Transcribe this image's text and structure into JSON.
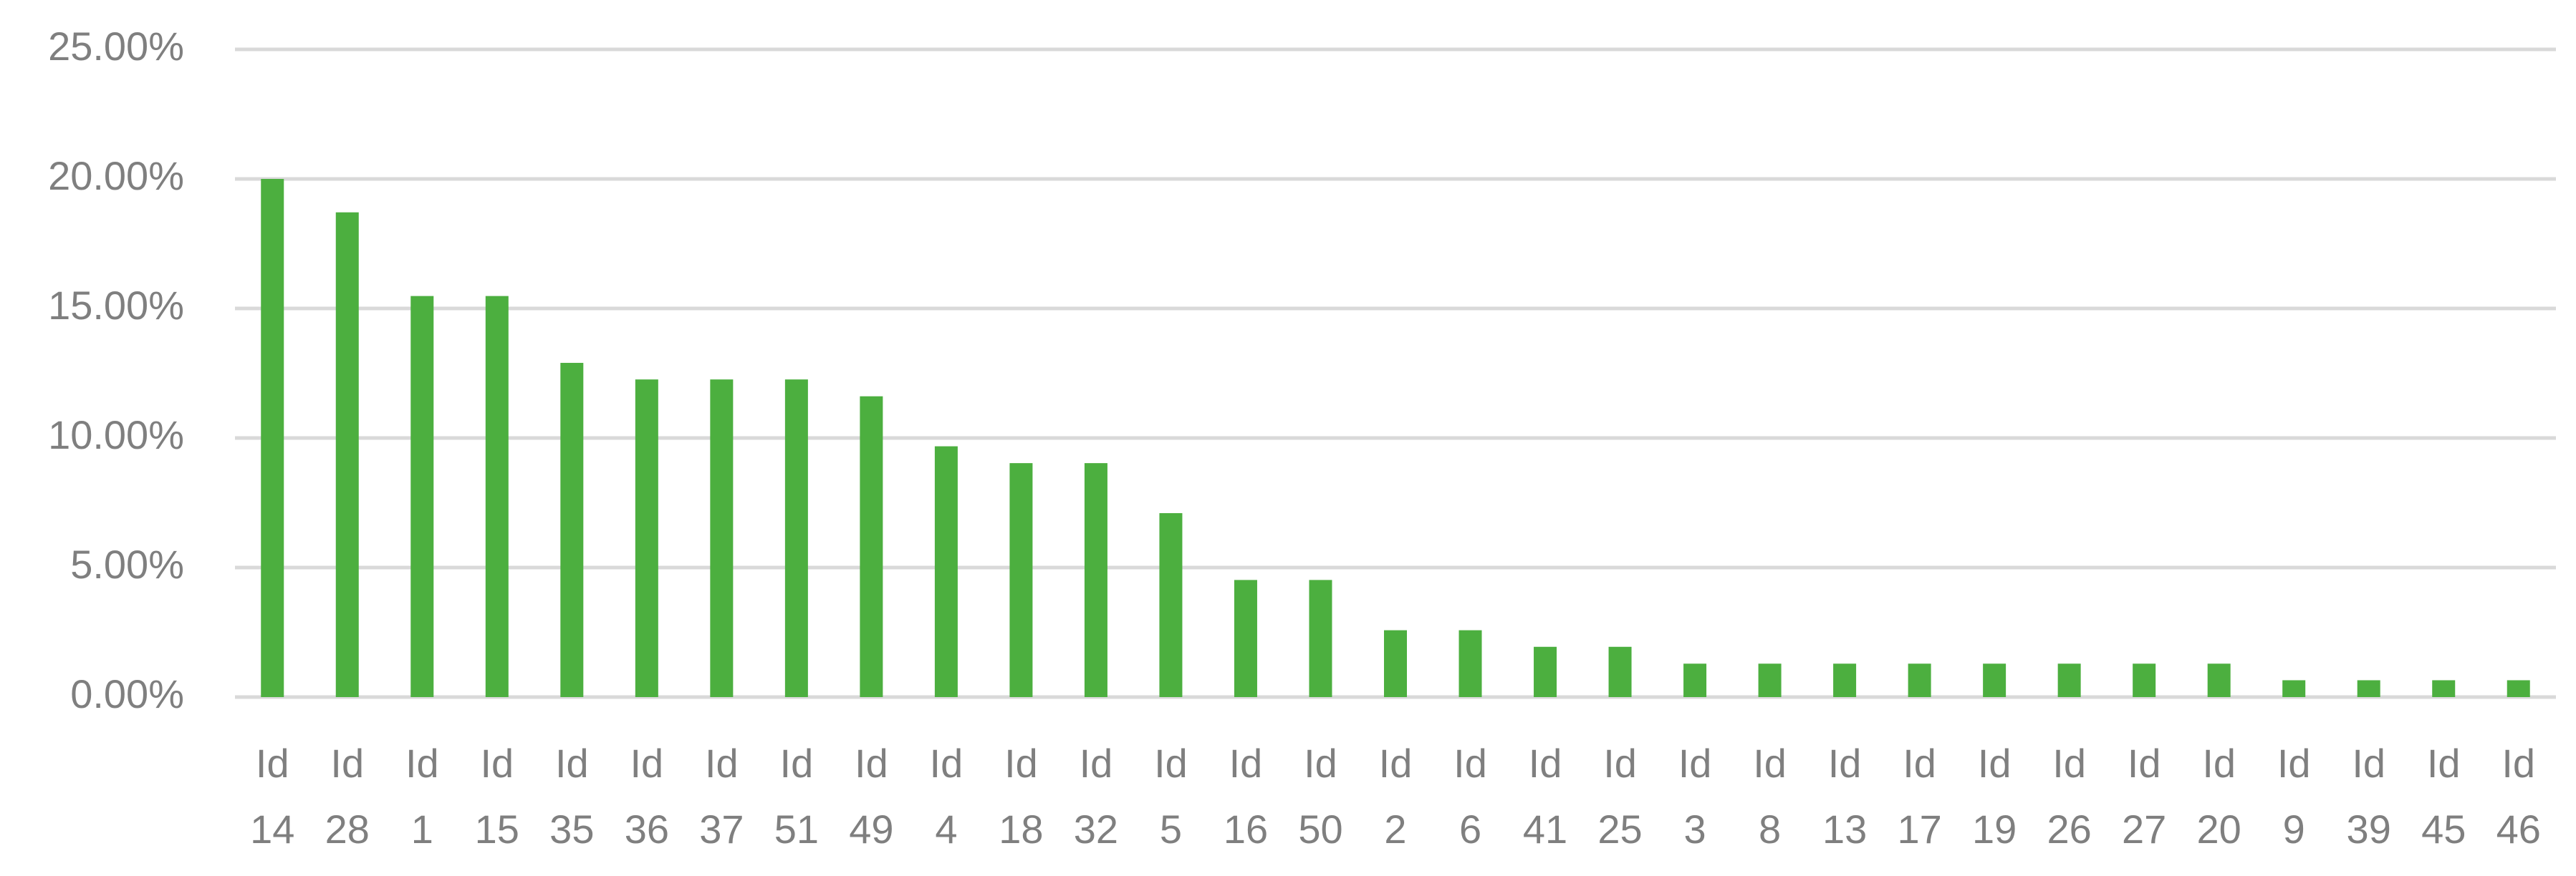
{
  "chart_data": {
    "type": "bar",
    "categories": [
      "Id 14",
      "Id 28",
      "Id 1",
      "Id 15",
      "Id 35",
      "Id 36",
      "Id 37",
      "Id 51",
      "Id 49",
      "Id 4",
      "Id 18",
      "Id 32",
      "Id 5",
      "Id 16",
      "Id 50",
      "Id 2",
      "Id 6",
      "Id 41",
      "Id 25",
      "Id 3",
      "Id 8",
      "Id 13",
      "Id 17",
      "Id 19",
      "Id 26",
      "Id 27",
      "Id 20",
      "Id 9",
      "Id 39",
      "Id 45",
      "Id 46"
    ],
    "values": [
      20.0,
      18.71,
      15.48,
      15.48,
      12.9,
      12.26,
      12.26,
      12.26,
      11.61,
      9.68,
      9.03,
      9.03,
      7.1,
      4.52,
      4.52,
      2.58,
      2.58,
      1.94,
      1.94,
      1.29,
      1.29,
      1.29,
      1.29,
      1.29,
      1.29,
      1.29,
      1.29,
      0.65,
      0.65,
      0.65,
      0.65
    ],
    "color": "#4caf3f",
    "ylim": [
      0,
      25
    ],
    "yticks": [
      {
        "value": 0,
        "label": "0.00%"
      },
      {
        "value": 5,
        "label": "5.00%"
      },
      {
        "value": 10,
        "label": "10.00%"
      },
      {
        "value": 15,
        "label": "15.00%"
      },
      {
        "value": 20,
        "label": "20.00%"
      },
      {
        "value": 25,
        "label": "25.00%"
      }
    ],
    "grid": true
  }
}
